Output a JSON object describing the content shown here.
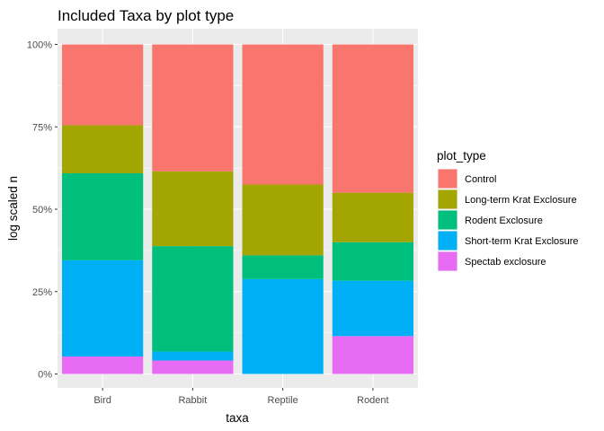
{
  "chart_data": {
    "type": "bar",
    "stacked": "fill",
    "title": "Included Taxa by plot type",
    "xlabel": "taxa",
    "ylabel": "log scaled n",
    "ylim": [
      0,
      1
    ],
    "yticks": [
      0,
      0.25,
      0.5,
      0.75,
      1
    ],
    "ytick_labels": [
      "0%",
      "25%",
      "50%",
      "75%",
      "100%"
    ],
    "categories": [
      "Bird",
      "Rabbit",
      "Reptile",
      "Rodent"
    ],
    "legend_title": "plot_type",
    "legend_position": "right",
    "grid": true,
    "series": [
      {
        "name": "Control",
        "color": "#F8766D",
        "values": [
          0.245,
          0.385,
          0.425,
          0.45
        ]
      },
      {
        "name": "Long-term Krat Exclosure",
        "color": "#A3A500",
        "values": [
          0.146,
          0.227,
          0.215,
          0.15
        ]
      },
      {
        "name": "Rodent Exclosure",
        "color": "#00BF7D",
        "values": [
          0.264,
          0.32,
          0.072,
          0.117
        ]
      },
      {
        "name": "Short-term Krat Exclosure",
        "color": "#00B0F6",
        "values": [
          0.292,
          0.027,
          0.288,
          0.168
        ]
      },
      {
        "name": "Spectab exclosure",
        "color": "#E76BF3",
        "values": [
          0.053,
          0.041,
          0.0,
          0.115
        ]
      }
    ]
  }
}
